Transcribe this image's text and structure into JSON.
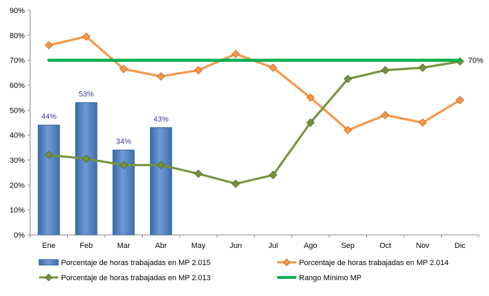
{
  "chart_data": {
    "type": "bar",
    "categories": [
      "Ene",
      "Feb",
      "Mar",
      "Abr",
      "May",
      "Jun",
      "Jul",
      "Ago",
      "Sep",
      "Oct",
      "Nov",
      "Dic"
    ],
    "ylim": [
      0,
      90
    ],
    "yticks": [
      "0%",
      "10%",
      "20%",
      "30%",
      "40%",
      "50%",
      "60%",
      "70%",
      "80%",
      "90%"
    ],
    "grid": false,
    "legend_position": "bottom",
    "series": [
      {
        "name": "Porcentaje de horas trabajadas en MP 2.015",
        "kind": "bar",
        "color": "#4F81BD",
        "values": [
          44,
          53,
          34,
          43,
          null,
          null,
          null,
          null,
          null,
          null,
          null,
          null
        ],
        "labels": [
          "44%",
          "53%",
          "34%",
          "43%"
        ]
      },
      {
        "name": "Porcentaje de horas trabajadas en MP 2.014",
        "kind": "line",
        "marker": "diamond",
        "color": "#F79646",
        "values": [
          76,
          79.5,
          66.5,
          63.5,
          66,
          72.5,
          67,
          55,
          42,
          48,
          45,
          54
        ]
      },
      {
        "name": "Porcentaje de horas trabajadas en MP 2.013",
        "kind": "line",
        "marker": "diamond",
        "color": "#77933C",
        "values": [
          32,
          30.5,
          28,
          28,
          24.5,
          20.5,
          24,
          45,
          62.5,
          66,
          67,
          69.5
        ]
      },
      {
        "name": "Rango Mínimo MP",
        "kind": "line",
        "marker": "none",
        "color": "#00B050",
        "values": [
          70,
          70,
          70,
          70,
          70,
          70,
          70,
          70,
          70,
          70,
          70,
          70
        ],
        "end_label": "70%"
      }
    ]
  }
}
